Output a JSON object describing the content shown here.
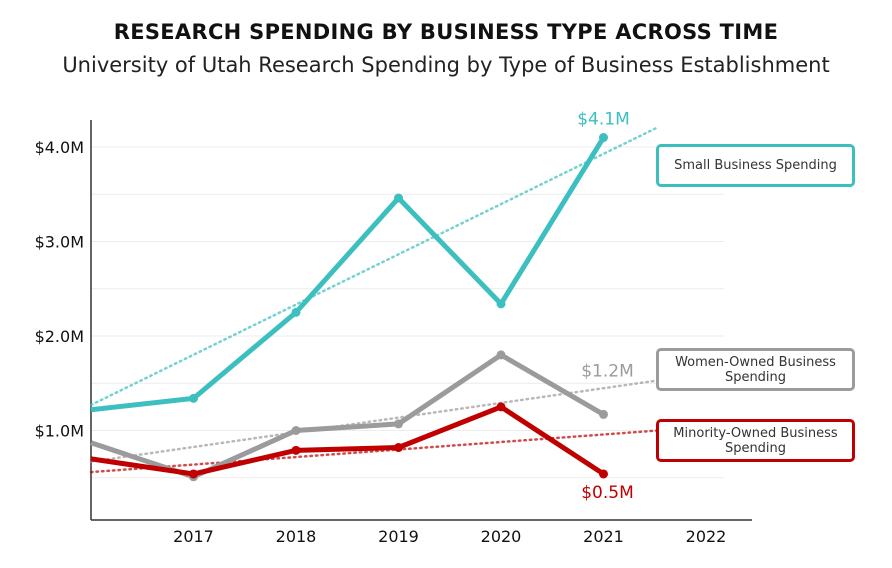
{
  "chart_data": {
    "type": "line",
    "title": "RESEARCH SPENDING BY BUSINESS TYPE ACROSS TIME",
    "subtitle": "University of Utah Research Spending by Type of Business Establishment",
    "x": [
      2016,
      2017,
      2018,
      2019,
      2020,
      2021
    ],
    "x_ticks": [
      "2017",
      "2018",
      "2019",
      "2020",
      "2021",
      "2022"
    ],
    "x_range": [
      2016,
      2022.5
    ],
    "y_ticks": [
      1.0,
      2.0,
      3.0,
      4.0
    ],
    "y_tick_labels": [
      "$1.0M",
      "$2.0M",
      "$3.0M",
      "$4.0M"
    ],
    "ylim": [
      0.0,
      4.25
    ],
    "grid": true,
    "legend_placement": "right",
    "series": [
      {
        "name": "Small Business Spending",
        "color": "#3dbfbf",
        "values": [
          1.22,
          1.34,
          2.25,
          3.46,
          2.34,
          4.1
        ],
        "end_label": "$4.1M",
        "trend": [
          1.27,
          4.21
        ]
      },
      {
        "name": "Women-Owned Business Spending",
        "color": "#9b9b9b",
        "values": [
          0.87,
          0.51,
          1.0,
          1.07,
          1.8,
          1.17
        ],
        "end_label": "$1.2M",
        "trend": [
          0.67,
          1.53
        ]
      },
      {
        "name": "Minority-Owned Business Spending",
        "color": "#c00000",
        "values": [
          0.7,
          0.54,
          0.79,
          0.82,
          1.25,
          0.54
        ],
        "end_label": "$0.5M",
        "trend": [
          0.56,
          1.0
        ]
      }
    ]
  }
}
